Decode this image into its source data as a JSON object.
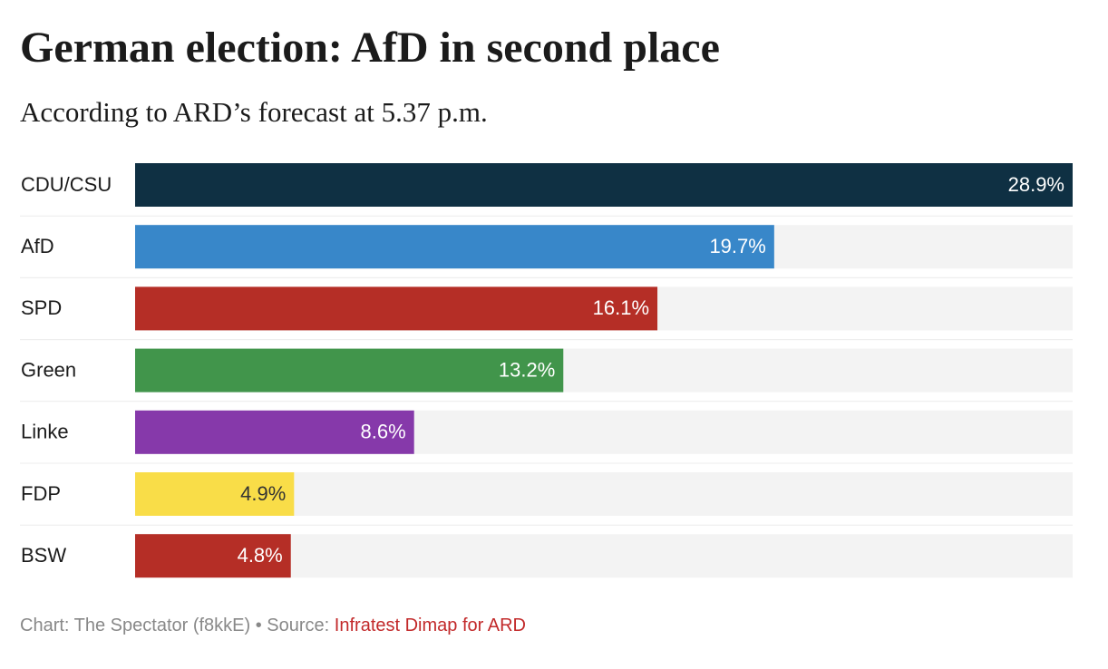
{
  "chart_data": {
    "type": "bar",
    "orientation": "horizontal",
    "title": "German election: AfD in second place",
    "subtitle": "According to ARD’s forecast at 5.37 p.m.",
    "categories": [
      "CDU/CSU",
      "AfD",
      "SPD",
      "Green",
      "Linke",
      "FDP",
      "BSW"
    ],
    "values": [
      28.9,
      19.7,
      16.1,
      13.2,
      8.6,
      4.9,
      4.8
    ],
    "value_labels": [
      "28.9%",
      "19.7%",
      "16.1%",
      "13.2%",
      "8.6%",
      "4.9%",
      "4.8%"
    ],
    "colors": [
      "#0f3043",
      "#3887c9",
      "#b52e26",
      "#41954b",
      "#8639aa",
      "#f9dd48",
      "#b52e26"
    ],
    "footer": "Chart: The Spectator (f8kkE) • Source:",
    "source": "Infratest Dimap for ARD"
  }
}
